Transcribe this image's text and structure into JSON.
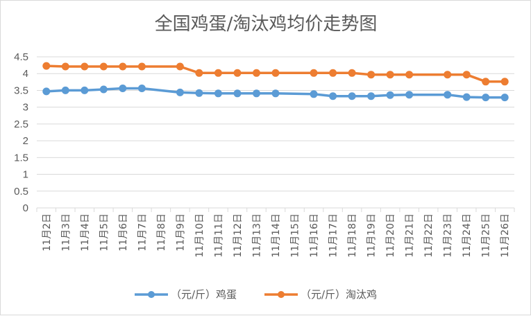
{
  "chart_data": {
    "type": "line",
    "title": "全国鸡蛋/淘汰鸡均价走势图",
    "categories": [
      "11月2日",
      "11月3日",
      "11月4日",
      "11月5日",
      "11月6日",
      "11月7日",
      "11月8日",
      "11月9日",
      "11月10日",
      "11月11日",
      "11月12日",
      "11月13日",
      "11月14日",
      "11月15日",
      "11月16日",
      "11月17日",
      "11月18日",
      "11月19日",
      "11月20日",
      "11月21日",
      "11月22日",
      "11月23日",
      "11月24日",
      "11月25日",
      "11月26日"
    ],
    "series": [
      {
        "name": "（元/斤）鸡蛋",
        "color": "#5b9bd5",
        "values": [
          3.47,
          3.5,
          3.5,
          3.53,
          3.56,
          3.56,
          null,
          3.44,
          3.42,
          3.41,
          3.41,
          3.41,
          3.41,
          null,
          3.39,
          3.33,
          3.33,
          3.33,
          3.36,
          3.37,
          null,
          3.37,
          3.3,
          3.29,
          3.29
        ]
      },
      {
        "name": "（元/斤）淘汰鸡",
        "color": "#ed7d31",
        "values": [
          4.23,
          4.21,
          4.21,
          4.21,
          4.21,
          4.21,
          null,
          4.21,
          4.02,
          4.02,
          4.02,
          4.02,
          4.02,
          null,
          4.02,
          4.02,
          4.02,
          3.97,
          3.97,
          3.97,
          null,
          3.97,
          3.97,
          3.76,
          3.76
        ]
      }
    ],
    "ylim": [
      0,
      4.5
    ],
    "yticks": [
      "0",
      "0.5",
      "1",
      "1.5",
      "2",
      "2.5",
      "3",
      "3.5",
      "4",
      "4.5"
    ],
    "grid": true,
    "legend_position": "bottom"
  }
}
